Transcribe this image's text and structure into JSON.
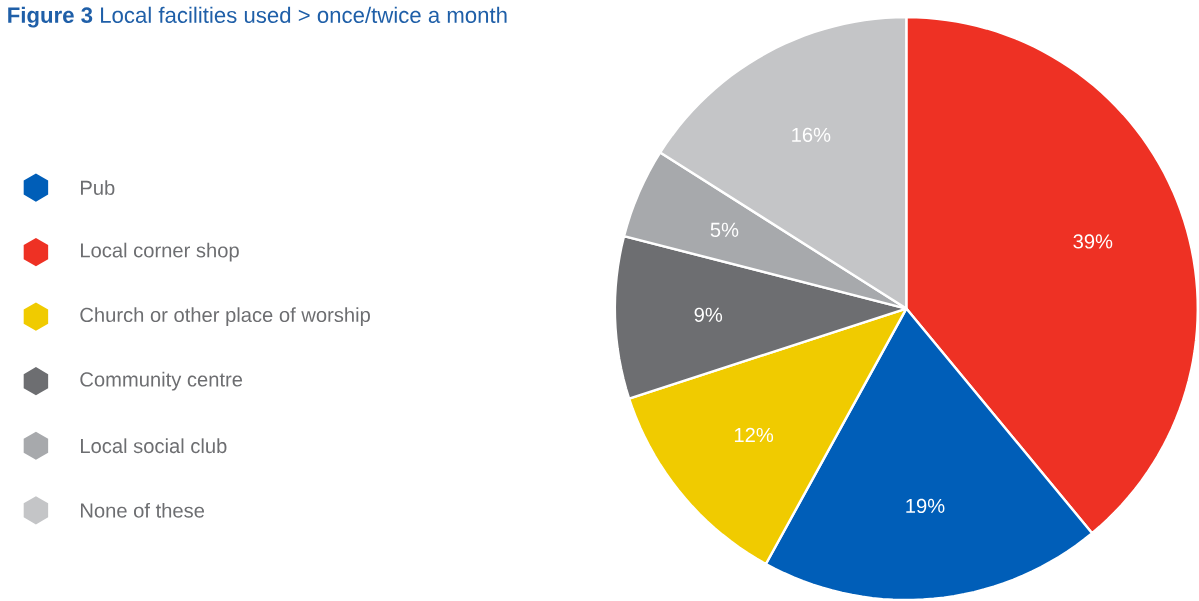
{
  "chart_data": {
    "type": "pie",
    "title": "**Figure 3** Local facilities used > once/twice a month",
    "categories": [
      "Pub",
      "Local corner shop",
      "Church or other place of worship",
      "Community centre",
      "Local social club",
      "None of these"
    ],
    "values": [
      19,
      39,
      12,
      9,
      5,
      16
    ],
    "value_labels": [
      "19%",
      "39%",
      "12%",
      "9%",
      "5%",
      "16%"
    ],
    "colors": [
      "#005eb8",
      "#ee3124",
      "#f0cb00",
      "#6d6e71",
      "#a7a9ac",
      "#c4c5c7"
    ],
    "legend": "left"
  }
}
